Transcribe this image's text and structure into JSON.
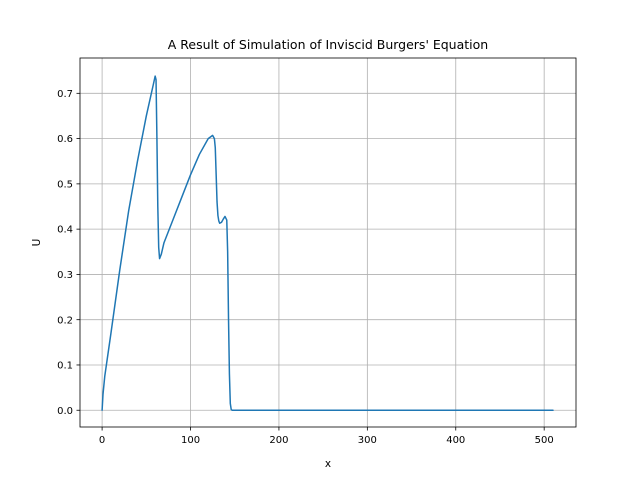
{
  "chart_data": {
    "type": "line",
    "title": "A Result of Simulation of Inviscid Burgers' Equation",
    "xlabel": "x",
    "ylabel": "U",
    "xlim": [
      -25,
      536
    ],
    "ylim": [
      -0.037,
      0.778
    ],
    "grid": true,
    "x_ticks": [
      0,
      100,
      200,
      300,
      400,
      500
    ],
    "y_ticks": [
      0.0,
      0.1,
      0.2,
      0.3,
      0.4,
      0.5,
      0.6,
      0.7
    ],
    "line_color": "#1f77b4",
    "series": [
      {
        "x": [
          0,
          1,
          3,
          10,
          20,
          30,
          40,
          50,
          58,
          60,
          61,
          62,
          63,
          64,
          65,
          67,
          70,
          80,
          90,
          100,
          110,
          120,
          125,
          127,
          128,
          129,
          130,
          131,
          132,
          133,
          135,
          137,
          139,
          141,
          142,
          143,
          144,
          145,
          146,
          147,
          150,
          200,
          300,
          400,
          500,
          510
        ],
        "y": [
          0.0,
          0.035,
          0.075,
          0.17,
          0.31,
          0.44,
          0.55,
          0.65,
          0.72,
          0.738,
          0.73,
          0.6,
          0.45,
          0.36,
          0.335,
          0.345,
          0.37,
          0.42,
          0.47,
          0.52,
          0.565,
          0.6,
          0.607,
          0.6,
          0.58,
          0.52,
          0.46,
          0.43,
          0.418,
          0.413,
          0.415,
          0.422,
          0.428,
          0.42,
          0.35,
          0.2,
          0.08,
          0.015,
          0.002,
          0.0,
          0.0,
          0.0,
          0.0,
          0.0,
          0.0,
          0.0
        ]
      }
    ]
  }
}
